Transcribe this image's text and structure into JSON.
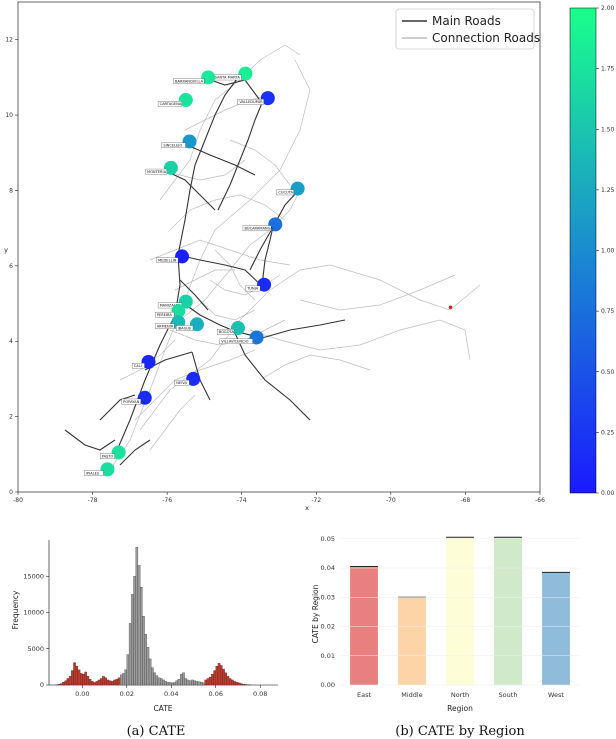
{
  "map": {
    "chart_data": {
      "type": "scatter",
      "xlabel": "x",
      "ylabel": "y",
      "xlim": [
        -80,
        -66
      ],
      "ylim": [
        0,
        13
      ],
      "x_ticks": [
        -80,
        -78,
        -76,
        -74,
        -72,
        -70,
        -68,
        -66
      ],
      "y_ticks": [
        0,
        2,
        4,
        6,
        8,
        10,
        12
      ],
      "legend": {
        "position": "top-right",
        "entries": [
          "Main Roads",
          "Connection Roads"
        ]
      },
      "colorbar": {
        "min": 0.0,
        "max": 2.0,
        "ticks": [
          "0.00",
          "0.25",
          "0.50",
          "0.75",
          "1.00",
          "1.25",
          "1.50",
          "1.75",
          "2.00"
        ]
      },
      "cities": [
        {
          "name": "SANTA MARTA",
          "x": -73.9,
          "y": 11.1,
          "value": 1.85
        },
        {
          "name": "BARRANQUILLA",
          "x": -74.9,
          "y": 11.0,
          "value": 1.8
        },
        {
          "name": "CARTAGENA",
          "x": -75.5,
          "y": 10.4,
          "value": 1.75
        },
        {
          "name": "VALLEDUPAR",
          "x": -73.3,
          "y": 10.45,
          "value": 0.2
        },
        {
          "name": "SINCELEJO",
          "x": -75.4,
          "y": 9.3,
          "value": 1.1
        },
        {
          "name": "MONTERIA",
          "x": -75.9,
          "y": 8.6,
          "value": 1.6
        },
        {
          "name": "CUCUTA",
          "x": -72.5,
          "y": 8.05,
          "value": 1.15
        },
        {
          "name": "BUCARAMANGA",
          "x": -73.1,
          "y": 7.1,
          "value": 0.75
        },
        {
          "name": "MEDELLIN",
          "x": -75.6,
          "y": 6.25,
          "value": 0.05
        },
        {
          "name": "TUNJA",
          "x": -73.4,
          "y": 5.5,
          "value": 0.15
        },
        {
          "name": "MANIZALES",
          "x": -75.5,
          "y": 5.05,
          "value": 1.6
        },
        {
          "name": "PEREIRA",
          "x": -75.7,
          "y": 4.8,
          "value": 1.7
        },
        {
          "name": "ARMENIA",
          "x": -75.7,
          "y": 4.5,
          "value": 1.4
        },
        {
          "name": "IBAGUE",
          "x": -75.2,
          "y": 4.45,
          "value": 1.3
        },
        {
          "name": "BOGOTA",
          "x": -74.1,
          "y": 4.35,
          "value": 1.45
        },
        {
          "name": "VILLAVICENCIO",
          "x": -73.6,
          "y": 4.1,
          "value": 0.8
        },
        {
          "name": "CALI",
          "x": -76.5,
          "y": 3.45,
          "value": 0.1
        },
        {
          "name": "NEIVA",
          "x": -75.3,
          "y": 3.0,
          "value": 0.15
        },
        {
          "name": "POPAYAN",
          "x": -76.6,
          "y": 2.5,
          "value": 0.15
        },
        {
          "name": "PASTO",
          "x": -77.3,
          "y": 1.05,
          "value": 1.75
        },
        {
          "name": "IPIALES",
          "x": -77.6,
          "y": 0.6,
          "value": 1.7
        }
      ],
      "marker": {
        "x": -68.4,
        "y": 4.9,
        "color": "#e02020"
      }
    }
  },
  "hist": {
    "caption": "(a) CATE",
    "chart_data": {
      "type": "bar",
      "xlabel": "CATE",
      "ylabel": "Frequency",
      "xlim": [
        -0.015,
        0.088
      ],
      "ylim": [
        0,
        20000
      ],
      "x_ticks": [
        0.0,
        0.02,
        0.04,
        0.06,
        0.08
      ],
      "x_tick_labels": [
        "0.00",
        "0.02",
        "0.04",
        "0.06",
        "0.08"
      ],
      "y_ticks": [
        0,
        5000,
        10000,
        15000
      ],
      "bin_start": -0.012,
      "bin_width": 0.001,
      "values": [
        50,
        100,
        200,
        400,
        600,
        900,
        1200,
        2000,
        3100,
        2600,
        2100,
        1600,
        1500,
        1800,
        1200,
        800,
        500,
        350,
        500,
        700,
        900,
        1200,
        1000,
        700,
        600,
        500,
        700,
        800,
        1000,
        1400,
        1600,
        2100,
        4200,
        8500,
        12500,
        15000,
        19000,
        16500,
        13500,
        9500,
        7000,
        5200,
        3600,
        2400,
        1700,
        1300,
        1000,
        900,
        700,
        500,
        400,
        350,
        300,
        350,
        600,
        800,
        1500,
        1700,
        900,
        700,
        600,
        700,
        600,
        500,
        450,
        400,
        300,
        700,
        900,
        1100,
        1500,
        2000,
        2600,
        3000,
        2700,
        2200,
        1700,
        1200,
        900,
        700,
        500,
        400,
        300,
        200,
        120,
        80,
        40,
        20
      ],
      "highlight_ranges": [
        [
          -0.012,
          0.017
        ],
        [
          0.055,
          0.075
        ]
      ],
      "highlight_color": "#c0392b",
      "base_color": "#9a9a9a"
    }
  },
  "region": {
    "caption": "(b) CATE by Region",
    "chart_data": {
      "type": "bar",
      "xlabel": "Region",
      "ylabel": "CATE by Region",
      "ylim": [
        0,
        0.053
      ],
      "y_ticks": [
        0.0,
        0.01,
        0.02,
        0.03,
        0.04,
        0.05
      ],
      "y_tick_labels": [
        "0.00",
        "0.01",
        "0.02",
        "0.03",
        "0.04",
        "0.05"
      ],
      "categories": [
        "East",
        "Middle",
        "North",
        "South",
        "West"
      ],
      "values": [
        0.0405,
        0.03,
        0.0505,
        0.0505,
        0.0385
      ],
      "colors": [
        "#e88080",
        "#fdd4a8",
        "#fdfdd8",
        "#cfe9c9",
        "#8fbcdb"
      ]
    }
  }
}
